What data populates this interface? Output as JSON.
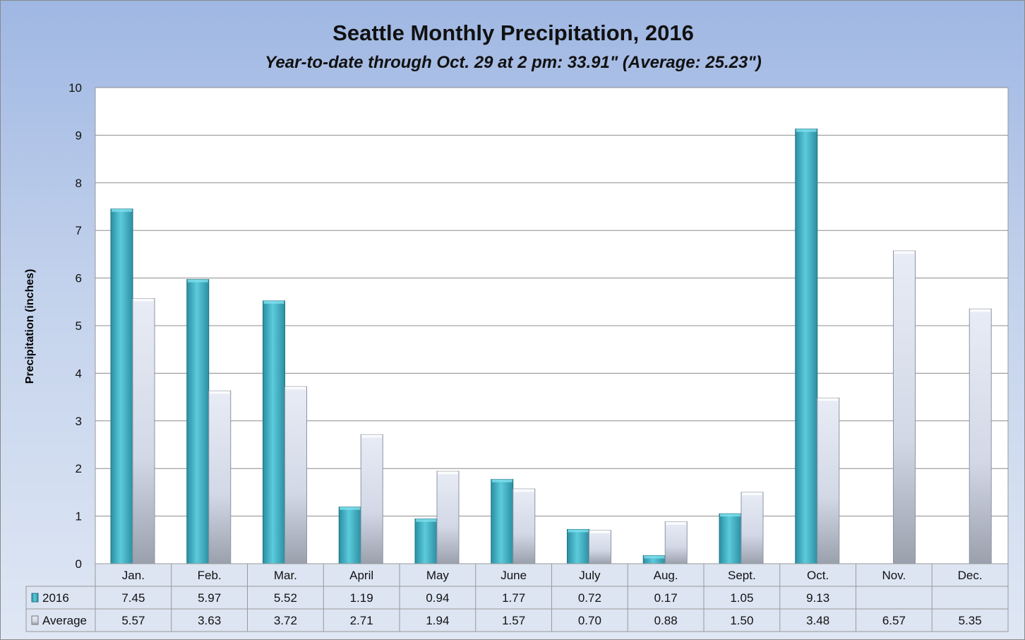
{
  "chart_data": {
    "type": "bar",
    "title": "Seattle Monthly Precipitation, 2016",
    "subtitle": "Year-to-date through Oct. 29 at 2 pm: 33.91\" (Average: 25.23\")",
    "xlabel": "",
    "ylabel": "Precipitation (inches)",
    "ylim": [
      0,
      10
    ],
    "yticks": [
      "0",
      "1",
      "2",
      "3",
      "4",
      "5",
      "6",
      "7",
      "8",
      "9",
      "10"
    ],
    "grid": true,
    "legend": "data-table",
    "categories": [
      "Jan.",
      "Feb.",
      "Mar.",
      "April",
      "May",
      "June",
      "July",
      "Aug.",
      "Sept.",
      "Oct.",
      "Nov.",
      "Dec."
    ],
    "series": [
      {
        "name": "2016",
        "color": "#3fb2c6",
        "values": [
          7.45,
          5.97,
          5.52,
          1.19,
          0.94,
          1.77,
          0.72,
          0.17,
          1.05,
          9.13,
          null,
          null
        ],
        "labels": [
          "7.45",
          "5.97",
          "5.52",
          "1.19",
          "0.94",
          "1.77",
          "0.72",
          "0.17",
          "1.05",
          "9.13",
          "",
          ""
        ]
      },
      {
        "name": "Average",
        "color": "#c9cfdc",
        "values": [
          5.57,
          3.63,
          3.72,
          2.71,
          1.94,
          1.57,
          0.7,
          0.88,
          1.5,
          3.48,
          6.57,
          5.35
        ],
        "labels": [
          "5.57",
          "3.63",
          "3.72",
          "2.71",
          "1.94",
          "1.57",
          "0.70",
          "0.88",
          "1.50",
          "3.48",
          "6.57",
          "5.35"
        ]
      }
    ]
  }
}
